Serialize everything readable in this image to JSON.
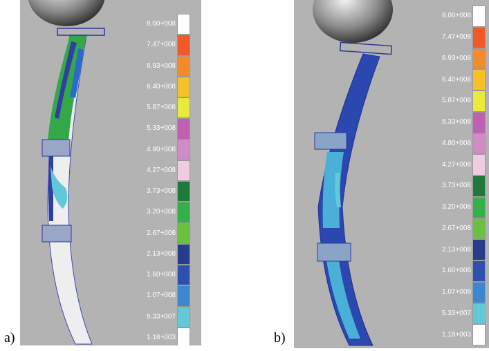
{
  "captions": {
    "a": "a)",
    "b": "b)"
  },
  "legend": {
    "labels": [
      "8.00+008",
      "7.47+008",
      "6.93+008",
      "6.40+008",
      "5.87+008",
      "5.33+008",
      "4.80+008",
      "4.27+008",
      "3.73+008",
      "3.20+008",
      "2.67+008",
      "2.13+008",
      "1.60+008",
      "1.07+008",
      "5.33+007",
      "1.18+003"
    ],
    "colors": [
      "#ffffff",
      "#f05a28",
      "#f58a2a",
      "#f5c02a",
      "#eaea3a",
      "#c060b0",
      "#d08cc4",
      "#f0cce0",
      "#1e7a3c",
      "#34b04a",
      "#6cc040",
      "#283c8c",
      "#3050b0",
      "#3c88d0",
      "#64c8d8",
      "#ffffff"
    ]
  },
  "background_color": "#b3b3b3"
}
